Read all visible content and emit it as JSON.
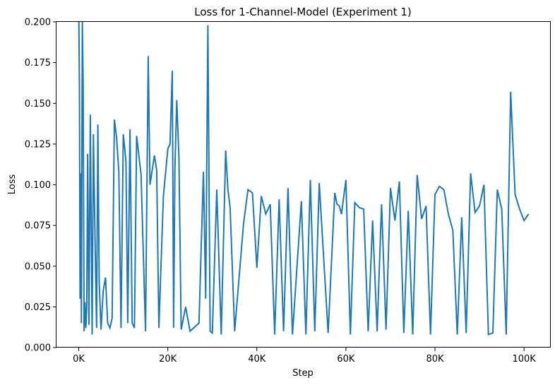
{
  "chart_data": {
    "type": "line",
    "title": "Loss for 1-Channel-Model (Experiment 1)",
    "xlabel": "Step",
    "ylabel": "Loss",
    "xlim": [
      -5000,
      106000
    ],
    "ylim": [
      0,
      0.2
    ],
    "grid": false,
    "line_color": "#1f77b4",
    "x_ticks": [
      {
        "value": 0,
        "label": "0K"
      },
      {
        "value": 20000,
        "label": "20K"
      },
      {
        "value": 40000,
        "label": "40K"
      },
      {
        "value": 60000,
        "label": "60K"
      },
      {
        "value": 80000,
        "label": "80K"
      },
      {
        "value": 100000,
        "label": "100K"
      }
    ],
    "y_ticks": [
      {
        "value": 0,
        "label": "0.000"
      },
      {
        "value": 0.025,
        "label": "0.025"
      },
      {
        "value": 0.05,
        "label": "0.050"
      },
      {
        "value": 0.075,
        "label": "0.075"
      },
      {
        "value": 0.1,
        "label": "0.100"
      },
      {
        "value": 0.125,
        "label": "0.125"
      },
      {
        "value": 0.15,
        "label": "0.150"
      },
      {
        "value": 0.175,
        "label": "0.175"
      },
      {
        "value": 0.2,
        "label": "0.200"
      }
    ],
    "series": [
      {
        "x": [
          0,
          150,
          300,
          450,
          600,
          800,
          1000,
          1200,
          1400,
          1600,
          1800,
          2000,
          2300,
          2600,
          3000,
          3300,
          3600,
          4000,
          4300,
          4600,
          5000,
          5500,
          6000,
          6500,
          7000,
          7500,
          8000,
          8500,
          9000,
          9500,
          10000,
          10300,
          10600,
          11000,
          11500,
          12000,
          12500,
          13000,
          14000,
          15000,
          15600,
          16000,
          17000,
          17500,
          18000,
          19000,
          20000,
          20500,
          21000,
          21300,
          21600,
          22000,
          22500,
          23000,
          24000,
          25000,
          27000,
          28000,
          28500,
          29000,
          29500,
          30000,
          31000,
          32000,
          33000,
          33500,
          34000,
          35000,
          37000,
          38000,
          39000,
          40000,
          41000,
          42000,
          43000,
          44000,
          45000,
          46000,
          47000,
          48000,
          50000,
          51000,
          52000,
          53000,
          54000,
          56000,
          57500,
          58000,
          58500,
          59000,
          60000,
          61000,
          62000,
          63000,
          64000,
          65000,
          66000,
          67000,
          68000,
          69000,
          70000,
          71000,
          72000,
          73000,
          74000,
          75000,
          76000,
          77000,
          78000,
          79000,
          80000,
          81000,
          82000,
          83000,
          84000,
          85000,
          86000,
          87000,
          88000,
          89000,
          90000,
          91000,
          92000,
          93000,
          94000,
          95000,
          96000,
          97000,
          98000,
          99000,
          100000,
          101000
        ],
        "y": [
          0.21,
          0.16,
          0.03,
          0.107,
          0.015,
          0.2,
          0.161,
          0.01,
          0.028,
          0.012,
          0.025,
          0.119,
          0.014,
          0.143,
          0.008,
          0.131,
          0.077,
          0.012,
          0.137,
          0.04,
          0.011,
          0.035,
          0.043,
          0.015,
          0.012,
          0.018,
          0.14,
          0.129,
          0.108,
          0.012,
          0.131,
          0.123,
          0.114,
          0.015,
          0.134,
          0.015,
          0.012,
          0.13,
          0.106,
          0.01,
          0.179,
          0.1,
          0.118,
          0.109,
          0.012,
          0.093,
          0.122,
          0.125,
          0.17,
          0.012,
          0.109,
          0.152,
          0.117,
          0.011,
          0.025,
          0.01,
          0.015,
          0.108,
          0.03,
          0.198,
          0.01,
          0.009,
          0.097,
          0.008,
          0.121,
          0.097,
          0.086,
          0.01,
          0.076,
          0.097,
          0.095,
          0.049,
          0.093,
          0.082,
          0.088,
          0.008,
          0.091,
          0.01,
          0.098,
          0.008,
          0.09,
          0.008,
          0.103,
          0.01,
          0.101,
          0.009,
          0.095,
          0.088,
          0.087,
          0.082,
          0.103,
          0.008,
          0.089,
          0.086,
          0.085,
          0.01,
          0.078,
          0.01,
          0.088,
          0.011,
          0.098,
          0.078,
          0.102,
          0.009,
          0.084,
          0.008,
          0.106,
          0.079,
          0.087,
          0.008,
          0.094,
          0.099,
          0.097,
          0.082,
          0.072,
          0.008,
          0.08,
          0.009,
          0.107,
          0.083,
          0.087,
          0.1,
          0.008,
          0.009,
          0.097,
          0.085,
          0.008,
          0.157,
          0.094,
          0.085,
          0.078,
          0.082
        ]
      }
    ]
  }
}
